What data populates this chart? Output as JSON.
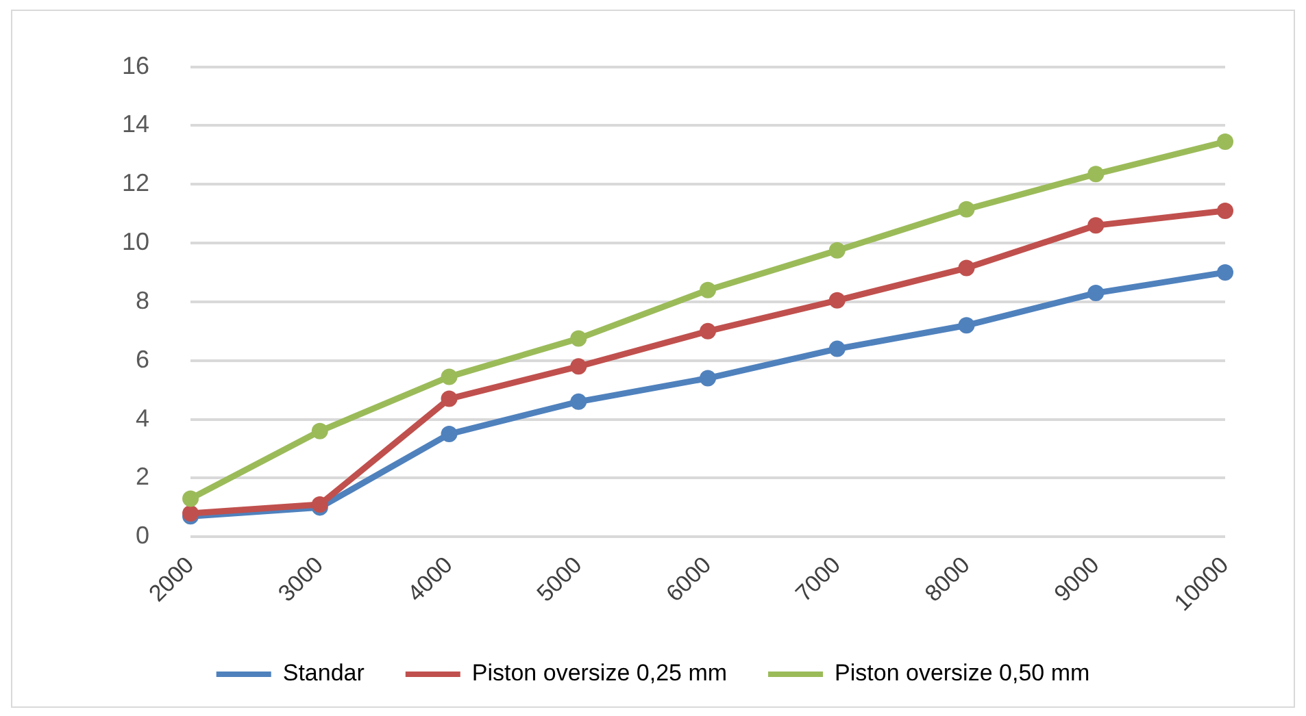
{
  "chart_data": {
    "type": "line",
    "categories": [
      "2000",
      "3000",
      "4000",
      "5000",
      "6000",
      "7000",
      "8000",
      "9000",
      "10000"
    ],
    "series": [
      {
        "name": "Standar",
        "color": "#4f81bd",
        "values": [
          0.7,
          1.0,
          3.5,
          4.6,
          5.4,
          6.4,
          7.2,
          8.3,
          9.0
        ]
      },
      {
        "name": "Piston oversize 0,25 mm",
        "color": "#c0504d",
        "values": [
          0.8,
          1.1,
          4.7,
          5.8,
          7.0,
          8.05,
          9.15,
          10.6,
          11.1
        ]
      },
      {
        "name": "Piston oversize 0,50 mm",
        "color": "#9bbb59",
        "values": [
          1.3,
          3.6,
          5.45,
          6.75,
          8.4,
          9.75,
          11.15,
          12.35,
          13.45
        ]
      }
    ],
    "ylim": [
      0,
      16
    ],
    "yticks": [
      0,
      2,
      4,
      6,
      8,
      10,
      12,
      14,
      16
    ],
    "grid": "y",
    "legend": "bottom",
    "marker": "circle",
    "line_style": "solid"
  }
}
